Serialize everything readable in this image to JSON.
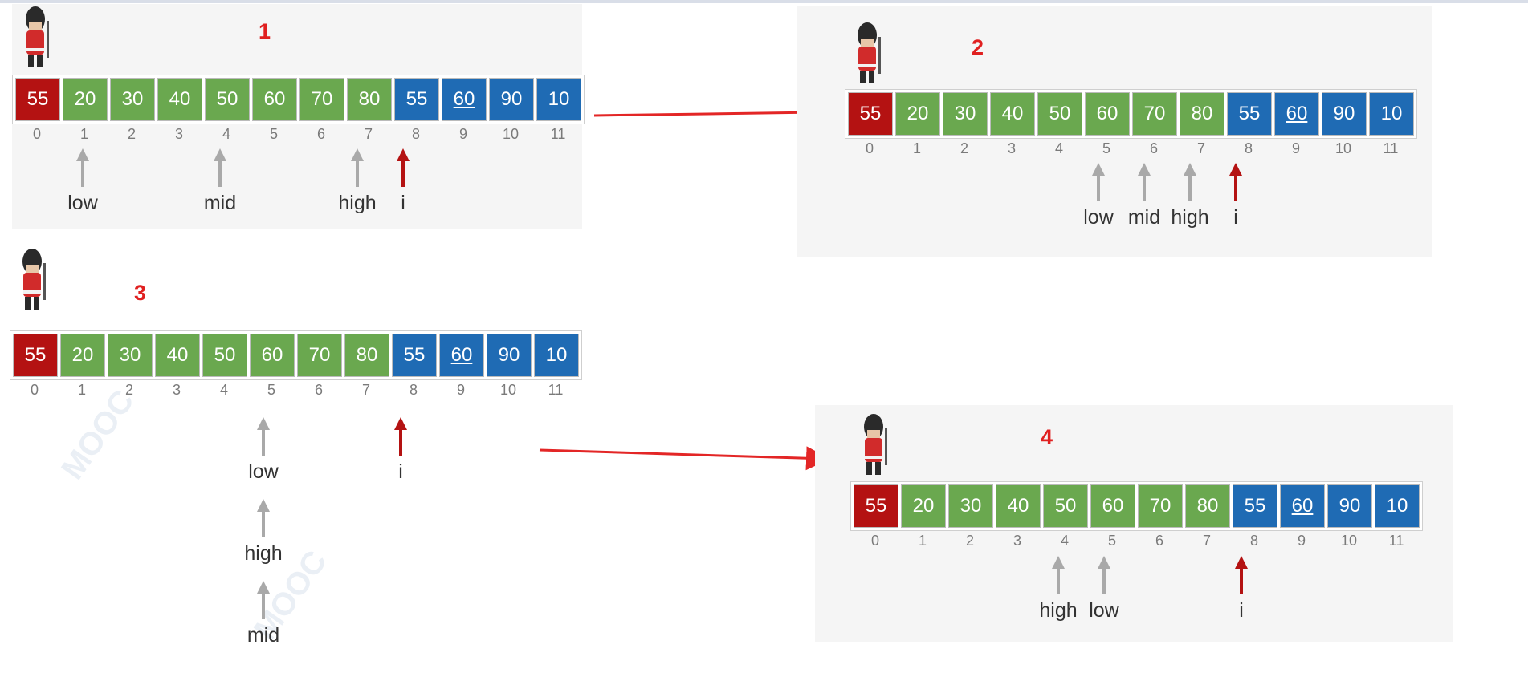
{
  "cells": [
    {
      "v": "55",
      "c": "red",
      "u": false
    },
    {
      "v": "20",
      "c": "green",
      "u": false
    },
    {
      "v": "30",
      "c": "green",
      "u": false
    },
    {
      "v": "40",
      "c": "green",
      "u": false
    },
    {
      "v": "50",
      "c": "green",
      "u": false
    },
    {
      "v": "60",
      "c": "green",
      "u": false
    },
    {
      "v": "70",
      "c": "green",
      "u": false
    },
    {
      "v": "80",
      "c": "green",
      "u": false
    },
    {
      "v": "55",
      "c": "blue",
      "u": false
    },
    {
      "v": "60",
      "c": "blue",
      "u": true
    },
    {
      "v": "90",
      "c": "blue",
      "u": false
    },
    {
      "v": "10",
      "c": "blue",
      "u": false
    }
  ],
  "indices": [
    "0",
    "1",
    "2",
    "3",
    "4",
    "5",
    "6",
    "7",
    "8",
    "9",
    "10",
    "11"
  ],
  "colors": {
    "sentinel": "#b41212",
    "sorted": "#6aa84f",
    "unsorted": "#1f6bb4",
    "pointer": "#a9a9a9",
    "i_pointer": "#b41212",
    "step": "#e02020",
    "connector": "#e32626"
  },
  "steps": [
    {
      "label": "1",
      "pointers": [
        {
          "label": "low",
          "index": 1,
          "color": "gray"
        },
        {
          "label": "mid",
          "index": 4,
          "color": "gray"
        },
        {
          "label": "high",
          "index": 7,
          "color": "gray"
        },
        {
          "label": "i",
          "index": 8,
          "color": "red"
        }
      ]
    },
    {
      "label": "2",
      "pointers": [
        {
          "label": "low",
          "index": 5,
          "color": "gray"
        },
        {
          "label": "mid",
          "index": 6,
          "color": "gray"
        },
        {
          "label": "high",
          "index": 7,
          "color": "gray"
        },
        {
          "label": "i",
          "index": 8,
          "color": "red"
        }
      ]
    },
    {
      "label": "3",
      "pointers": [
        {
          "label": "low",
          "index": 5,
          "color": "gray"
        },
        {
          "label": "high",
          "index": 5,
          "color": "gray"
        },
        {
          "label": "mid",
          "index": 5,
          "color": "gray"
        },
        {
          "label": "i",
          "index": 8,
          "color": "red"
        }
      ]
    },
    {
      "label": "4",
      "pointers": [
        {
          "label": "high",
          "index": 4,
          "color": "gray"
        },
        {
          "label": "low",
          "index": 5,
          "color": "gray"
        },
        {
          "label": "i",
          "index": 8,
          "color": "red"
        }
      ]
    }
  ]
}
